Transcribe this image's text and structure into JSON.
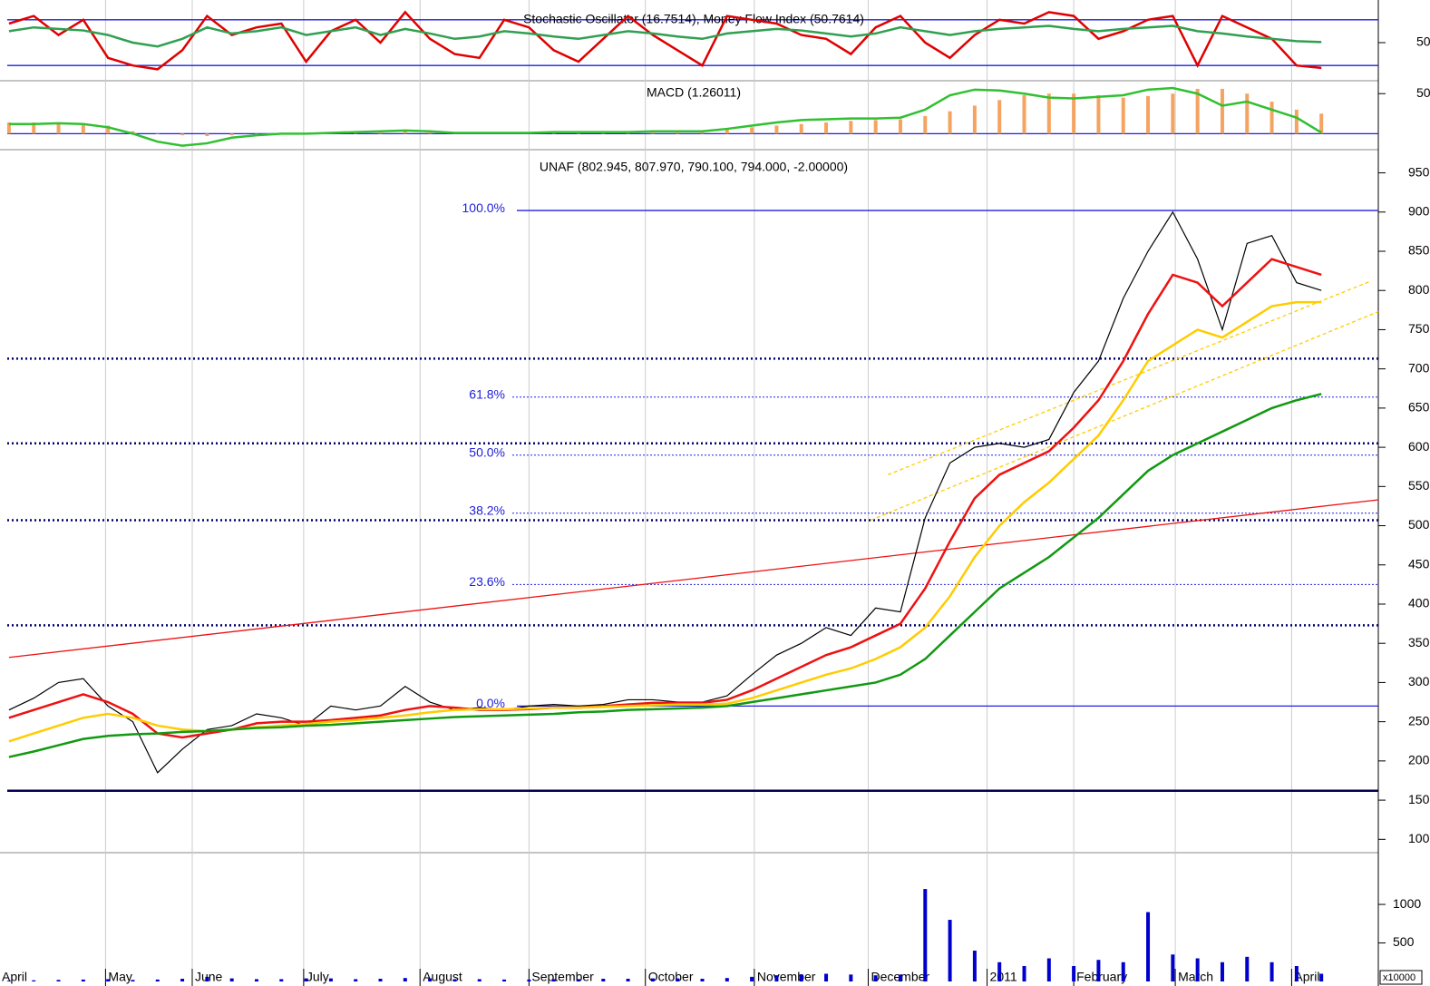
{
  "chart_data": [
    {
      "type": "line",
      "title": "Stochastic Oscillator (16.7514), Money Flow Index (50.7614)",
      "ylim": [
        0,
        100
      ],
      "yticks": [
        50
      ],
      "hlines": [
        20,
        80
      ],
      "xlim": [
        -0.07,
        55.3
      ],
      "series": [
        {
          "color": "#e00000",
          "values": [
            75,
            85,
            60,
            80,
            30,
            20,
            15,
            40,
            85,
            60,
            70,
            75,
            25,
            65,
            80,
            50,
            90,
            55,
            35,
            30,
            80,
            70,
            40,
            25,
            55,
            85,
            60,
            40,
            20,
            85,
            80,
            75,
            60,
            55,
            35,
            70,
            85,
            50,
            30,
            60,
            80,
            75,
            90,
            85,
            55,
            65,
            80,
            85,
            20,
            85,
            70,
            55,
            20,
            16.75
          ]
        },
        {
          "color": "#30a050",
          "values": [
            65,
            70,
            68,
            66,
            60,
            50,
            45,
            55,
            70,
            62,
            65,
            70,
            60,
            65,
            70,
            60,
            68,
            62,
            55,
            58,
            65,
            62,
            58,
            55,
            60,
            65,
            62,
            58,
            55,
            62,
            65,
            68,
            66,
            62,
            58,
            62,
            70,
            65,
            60,
            65,
            68,
            70,
            72,
            68,
            65,
            68,
            70,
            72,
            65,
            62,
            58,
            55,
            52,
            50.76
          ]
        }
      ]
    },
    {
      "type": "bar",
      "title": "MACD (1.26011)",
      "ylim": [
        -20,
        65
      ],
      "yticks": [
        50
      ],
      "hlines": [
        0
      ],
      "xlim": [
        -0.07,
        55.3
      ],
      "series": [
        {
          "type": "bar",
          "color": "#f4a460",
          "values": [
            14,
            14,
            14,
            13,
            10,
            3,
            0,
            -2,
            -3,
            -2,
            0,
            1,
            1,
            2,
            2,
            3,
            3,
            2,
            1,
            1,
            1,
            2,
            2,
            2,
            2,
            3,
            3,
            3,
            3,
            5,
            8,
            10,
            12,
            14,
            16,
            17,
            18,
            22,
            28,
            35,
            42,
            48,
            50,
            50,
            48,
            45,
            47,
            50,
            56,
            56,
            50,
            40,
            30,
            25
          ]
        },
        {
          "type": "line",
          "color": "#30c030",
          "values": [
            12,
            12,
            13,
            12,
            8,
            0,
            -10,
            -15,
            -12,
            -5,
            -2,
            0,
            0,
            1,
            2,
            3,
            4,
            3,
            1,
            1,
            1,
            1,
            2,
            2,
            2,
            2,
            3,
            3,
            3,
            6,
            10,
            14,
            17,
            18,
            19,
            19,
            20,
            30,
            48,
            55,
            54,
            50,
            45,
            44,
            46,
            48,
            55,
            57,
            50,
            35,
            40,
            30,
            20,
            1.26
          ]
        }
      ]
    },
    {
      "type": "line",
      "title": "UNAF (802.945, 807.970, 790.100, 794.000, -2.00000)",
      "ylim": [
        83,
        968
      ],
      "yticks": [
        950,
        900,
        850,
        800,
        750,
        700,
        650,
        600,
        550,
        500,
        450,
        400,
        350,
        300,
        250,
        200,
        150,
        100
      ],
      "xlim": [
        -0.07,
        55.3
      ],
      "series": [
        {
          "color": "#000000",
          "values": [
            265,
            280,
            300,
            305,
            270,
            250,
            185,
            215,
            240,
            245,
            260,
            255,
            245,
            270,
            265,
            270,
            295,
            275,
            265,
            268,
            265,
            270,
            272,
            270,
            272,
            278,
            278,
            275,
            275,
            283,
            310,
            335,
            350,
            370,
            360,
            395,
            390,
            510,
            580,
            600,
            605,
            600,
            610,
            670,
            710,
            790,
            850,
            900,
            840,
            750,
            860,
            870,
            810,
            800
          ]
        },
        {
          "color": "#ee1111",
          "values": [
            255,
            265,
            275,
            285,
            275,
            260,
            235,
            230,
            235,
            240,
            248,
            250,
            250,
            252,
            255,
            258,
            265,
            270,
            268,
            265,
            265,
            266,
            268,
            268,
            270,
            272,
            274,
            274,
            274,
            278,
            290,
            305,
            320,
            335,
            345,
            360,
            375,
            420,
            480,
            535,
            565,
            580,
            595,
            625,
            660,
            710,
            770,
            820,
            810,
            780,
            810,
            840,
            830,
            820
          ]
        },
        {
          "color": "#ffcc00",
          "values": [
            225,
            235,
            245,
            255,
            260,
            255,
            245,
            240,
            238,
            240,
            243,
            245,
            247,
            250,
            252,
            255,
            258,
            262,
            265,
            266,
            266,
            267,
            268,
            268,
            269,
            270,
            271,
            272,
            272,
            273,
            280,
            290,
            300,
            310,
            318,
            330,
            345,
            370,
            410,
            460,
            500,
            530,
            555,
            585,
            615,
            660,
            710,
            730,
            750,
            740,
            760,
            780,
            785,
            785
          ]
        },
        {
          "color": "#119911",
          "values": [
            205,
            212,
            220,
            228,
            232,
            234,
            235,
            237,
            238,
            240,
            242,
            243,
            245,
            246,
            248,
            250,
            252,
            254,
            256,
            257,
            258,
            259,
            260,
            262,
            263,
            265,
            266,
            267,
            268,
            270,
            275,
            280,
            285,
            290,
            295,
            300,
            310,
            330,
            360,
            390,
            420,
            440,
            460,
            485,
            510,
            540,
            570,
            590,
            605,
            620,
            635,
            650,
            660,
            668
          ]
        }
      ],
      "fib_levels": [
        {
          "name": "100.0%",
          "value": 902
        },
        {
          "name": "61.8%",
          "value": 664
        },
        {
          "name": "50.0%",
          "value": 590
        },
        {
          "name": "38.2%",
          "value": 516
        },
        {
          "name": "23.6%",
          "value": 425
        },
        {
          "name": "0.0%",
          "value": 270
        }
      ],
      "hlines": [
        713,
        605,
        507,
        373
      ],
      "support": 162,
      "trendlines": [
        {
          "color": "#ee1111",
          "x": [
            0,
            55.3
          ],
          "values": [
            332,
            533
          ]
        },
        {
          "color": "#ffcc00",
          "x": [
            35.5,
            55
          ],
          "values": [
            565,
            812
          ]
        },
        {
          "color": "#ffcc00",
          "x": [
            34.8,
            55.3
          ],
          "values": [
            507,
            773
          ]
        }
      ]
    },
    {
      "type": "bar",
      "ylim": [
        0,
        1660
      ],
      "yticks": [
        1000,
        500
      ],
      "unit": "x10000",
      "xlim": [
        -0.07,
        55.3
      ],
      "xticks": [
        {
          "value": -0.4,
          "label": "April"
        },
        {
          "value": 3.9,
          "label": "May"
        },
        {
          "value": 7.4,
          "label": "June"
        },
        {
          "value": 11.9,
          "label": "July"
        },
        {
          "value": 16.6,
          "label": "August"
        },
        {
          "value": 21,
          "label": "September"
        },
        {
          "value": 25.7,
          "label": "October"
        },
        {
          "value": 30.1,
          "label": "November"
        },
        {
          "value": 34.7,
          "label": "December"
        },
        {
          "value": 39.5,
          "label": "2011"
        },
        {
          "value": 43,
          "label": "February"
        },
        {
          "value": 47.1,
          "label": "March"
        },
        {
          "value": 51.8,
          "label": "April"
        }
      ],
      "series": [
        {
          "color": "#0000cc",
          "values": [
            10,
            15,
            20,
            25,
            30,
            20,
            25,
            35,
            60,
            40,
            30,
            30,
            40,
            40,
            30,
            35,
            45,
            40,
            30,
            30,
            25,
            25,
            30,
            30,
            35,
            35,
            40,
            40,
            35,
            45,
            60,
            80,
            90,
            100,
            90,
            80,
            90,
            1200,
            800,
            400,
            250,
            200,
            300,
            200,
            280,
            250,
            900,
            350,
            300,
            250,
            320,
            250,
            200,
            100
          ]
        }
      ]
    }
  ]
}
